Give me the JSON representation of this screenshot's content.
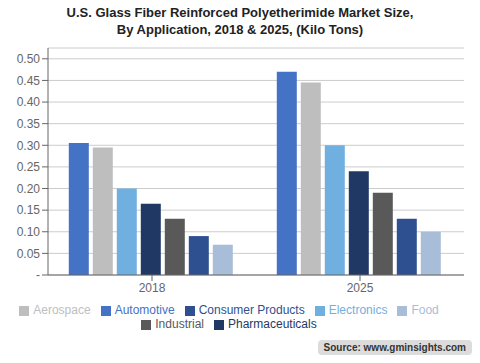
{
  "chart_data": {
    "type": "bar",
    "title": "U.S. Glass Fiber Reinforced Polyetherimide Market Size,\nBy Application, 2018 & 2025, (Kilo Tons)",
    "categories": [
      "2018",
      "2025"
    ],
    "series": [
      {
        "name": "Automotive",
        "color": "#4472C4",
        "values": [
          0.305,
          0.47
        ]
      },
      {
        "name": "Aerospace",
        "color": "#BEBEBE",
        "values": [
          0.295,
          0.445
        ]
      },
      {
        "name": "Electronics",
        "color": "#70B0E0",
        "values": [
          0.2,
          0.3
        ]
      },
      {
        "name": "Pharmaceuticals",
        "color": "#1F3864",
        "values": [
          0.165,
          0.24
        ]
      },
      {
        "name": "Industrial",
        "color": "#595959",
        "values": [
          0.13,
          0.19
        ]
      },
      {
        "name": "Consumer Products",
        "color": "#2E5090",
        "values": [
          0.09,
          0.13
        ]
      },
      {
        "name": "Food",
        "color": "#A8BDD8",
        "values": [
          0.07,
          0.1
        ]
      }
    ],
    "ylim": [
      0,
      0.525
    ],
    "yticks": [
      {
        "value": 0.0,
        "label": "-"
      },
      0.05,
      {
        "value": 0.1,
        "label": "0.10"
      },
      0.15,
      {
        "value": 0.2,
        "label": "0.20"
      },
      0.25,
      {
        "value": 0.3,
        "label": "0.30"
      },
      0.35,
      {
        "value": 0.4,
        "label": "0.40"
      },
      0.45,
      {
        "value": 0.5,
        "label": "0.50"
      }
    ],
    "grid": true,
    "legend": "bottom",
    "annotations": [
      "Source: www.gminsights.com"
    ]
  }
}
